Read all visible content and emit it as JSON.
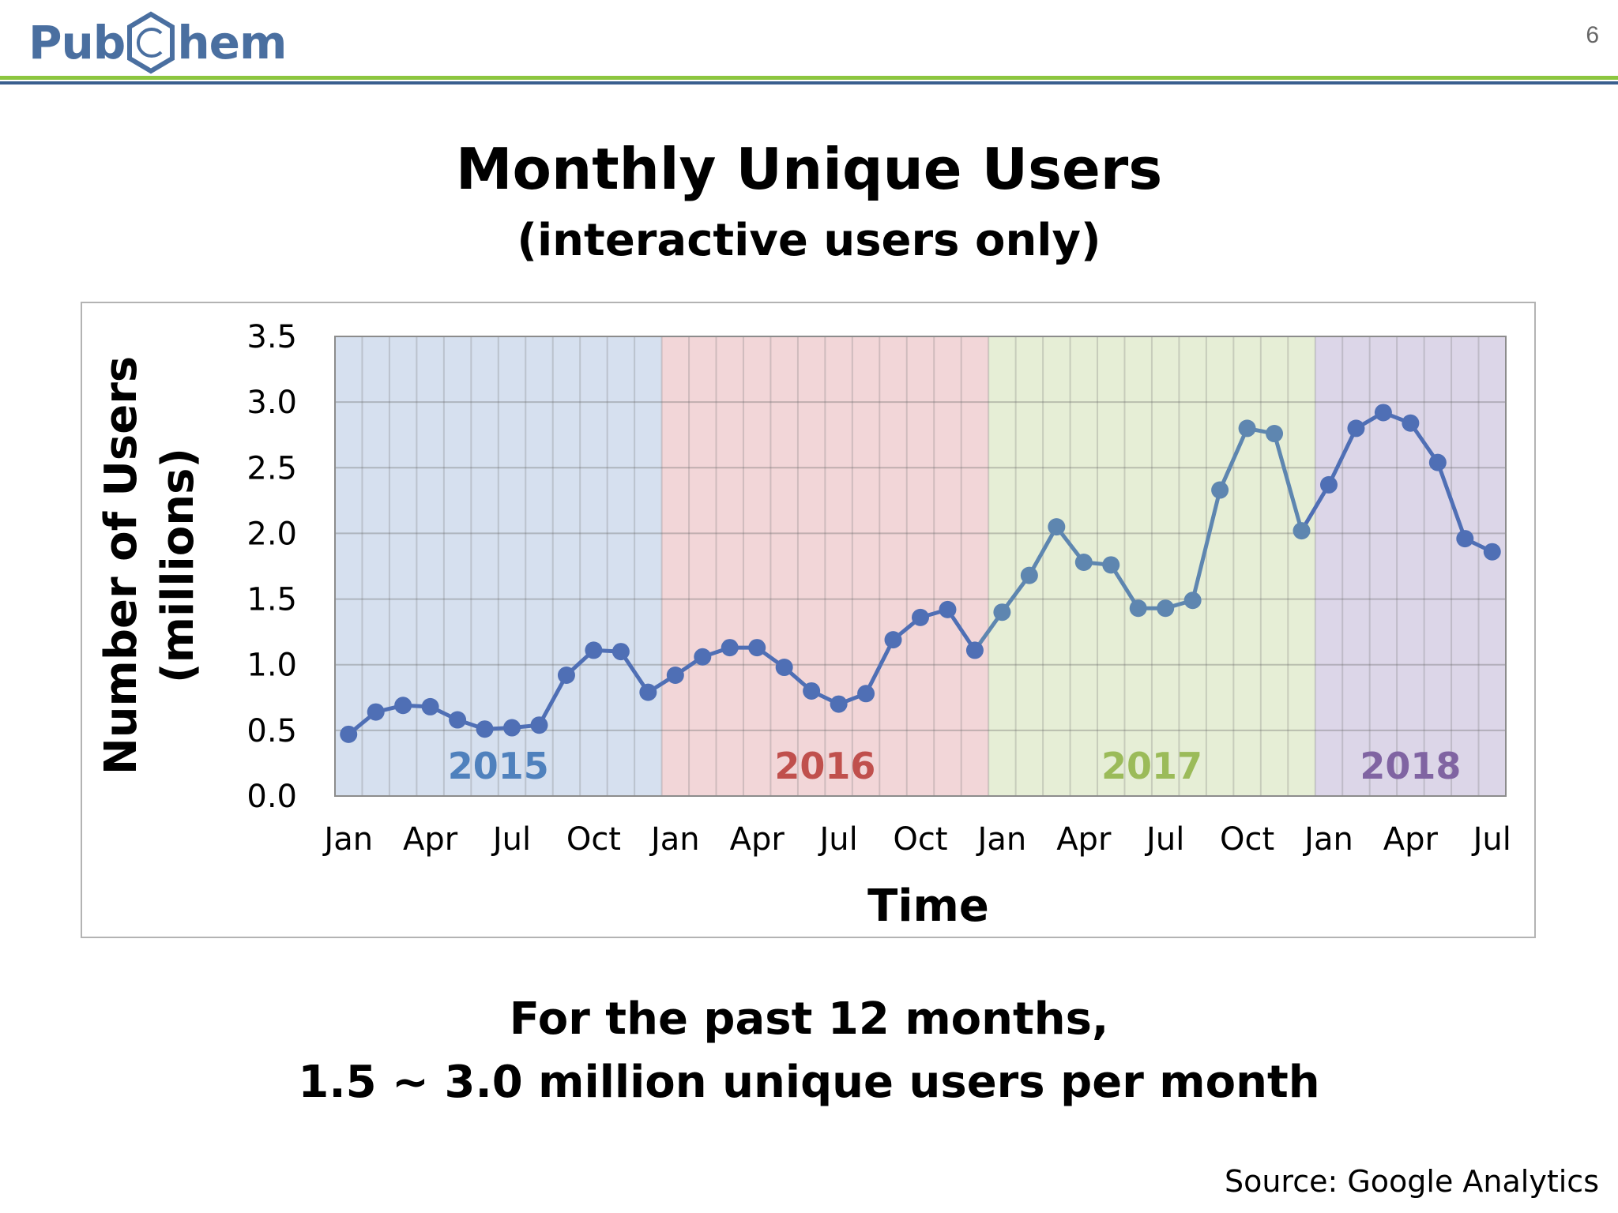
{
  "header": {
    "logo_left": "Pub",
    "logo_right": "hem",
    "page_number": "6"
  },
  "colors": {
    "band_2015": "#d6e0ef",
    "band_2016": "#f2d6d8",
    "band_2017": "#e6eed6",
    "band_2018": "#dcd6e8",
    "year_2015": "#4f81bd",
    "year_2016": "#c0504d",
    "year_2017": "#9bbb59",
    "year_2018": "#8064a2",
    "line_2015": "#4f6fb5",
    "line_2016": "#4f6fb5",
    "line_2017": "#5e86b0",
    "line_2018": "#4f6fb5"
  },
  "chart_data": {
    "type": "line",
    "title": "Monthly Unique Users",
    "subtitle": "(interactive users only)",
    "xlabel": "Time",
    "ylabel_line1": "Number of Users",
    "ylabel_line2": "(millions)",
    "ylim": [
      0,
      3.5
    ],
    "yticks": [
      "0.0",
      "0.5",
      "1.0",
      "1.5",
      "2.0",
      "2.5",
      "3.0",
      "3.5"
    ],
    "grid": true,
    "legend": "none",
    "x_tick_labels": [
      "Jan",
      "Apr",
      "Jul",
      "Oct",
      "Jan",
      "Apr",
      "Jul",
      "Oct",
      "Jan",
      "Apr",
      "Jul",
      "Oct",
      "Jan",
      "Apr",
      "Jul"
    ],
    "x_tick_month_index": [
      0,
      3,
      6,
      9,
      12,
      15,
      18,
      21,
      24,
      27,
      30,
      33,
      36,
      39,
      42
    ],
    "years": [
      {
        "label": "2015",
        "months": 12
      },
      {
        "label": "2016",
        "months": 12
      },
      {
        "label": "2017",
        "months": 12
      },
      {
        "label": "2018",
        "months": 7
      }
    ],
    "series": [
      {
        "values": [
          0.47,
          0.64,
          0.69,
          0.68,
          0.58,
          0.51,
          0.52,
          0.54,
          0.92,
          1.11,
          1.1,
          0.79,
          0.92,
          1.06,
          1.13,
          1.13,
          0.98,
          0.8,
          0.7,
          0.78,
          1.19,
          1.36,
          1.42,
          1.11,
          1.4,
          1.68,
          2.05,
          1.78,
          1.76,
          1.43,
          1.43,
          1.49,
          2.33,
          2.8,
          2.76,
          2.02,
          2.37,
          2.8,
          2.92,
          2.84,
          2.54,
          1.96,
          1.86
        ]
      }
    ]
  },
  "notes": {
    "line1": "For the past 12 months,",
    "line2": "1.5 ~ 3.0 million unique users per month"
  },
  "source": "Source: Google Analytics"
}
